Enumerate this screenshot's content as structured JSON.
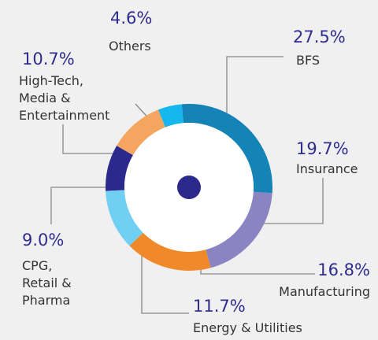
{
  "chart_data": {
    "type": "pie",
    "donut": true,
    "categories": [
      "BFS",
      "Insurance",
      "Manufacturing",
      "Energy & Utilities",
      "CPG,\nRetail &\nPharma",
      "High-Tech,\nMedia &\nEntertainment",
      "Others"
    ],
    "values": [
      27.5,
      19.7,
      16.8,
      11.7,
      9.0,
      10.7,
      4.6
    ],
    "value_labels": [
      "27.5%",
      "19.7%",
      "16.8%",
      "11.7%",
      "9.0%",
      "10.7%",
      "4.6%"
    ],
    "colors": [
      "#1484b6",
      "#8a84c2",
      "#f0892a",
      "#72cff4",
      "#2b2a8c",
      "#f4a560",
      "#16b7ee"
    ]
  }
}
